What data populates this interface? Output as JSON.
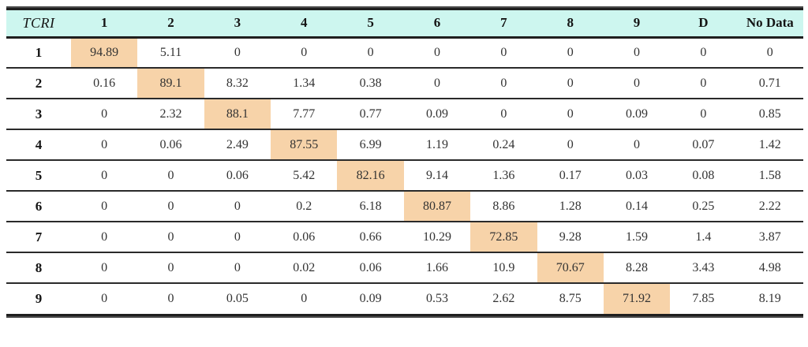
{
  "table": {
    "corner_label": "TCRI",
    "columns": [
      "1",
      "2",
      "3",
      "4",
      "5",
      "6",
      "7",
      "8",
      "9",
      "D",
      "No Data"
    ],
    "rows": [
      {
        "label": "1",
        "highlight_index": 0,
        "values": [
          "94.89",
          "5.11",
          "0",
          "0",
          "0",
          "0",
          "0",
          "0",
          "0",
          "0",
          "0"
        ]
      },
      {
        "label": "2",
        "highlight_index": 1,
        "values": [
          "0.16",
          "89.1",
          "8.32",
          "1.34",
          "0.38",
          "0",
          "0",
          "0",
          "0",
          "0",
          "0.71"
        ]
      },
      {
        "label": "3",
        "highlight_index": 2,
        "values": [
          "0",
          "2.32",
          "88.1",
          "7.77",
          "0.77",
          "0.09",
          "0",
          "0",
          "0.09",
          "0",
          "0.85"
        ]
      },
      {
        "label": "4",
        "highlight_index": 3,
        "values": [
          "0",
          "0.06",
          "2.49",
          "87.55",
          "6.99",
          "1.19",
          "0.24",
          "0",
          "0",
          "0.07",
          "1.42"
        ]
      },
      {
        "label": "5",
        "highlight_index": 4,
        "values": [
          "0",
          "0",
          "0.06",
          "5.42",
          "82.16",
          "9.14",
          "1.36",
          "0.17",
          "0.03",
          "0.08",
          "1.58"
        ]
      },
      {
        "label": "6",
        "highlight_index": 5,
        "values": [
          "0",
          "0",
          "0",
          "0.2",
          "6.18",
          "80.87",
          "8.86",
          "1.28",
          "0.14",
          "0.25",
          "2.22"
        ]
      },
      {
        "label": "7",
        "highlight_index": 6,
        "values": [
          "0",
          "0",
          "0",
          "0.06",
          "0.66",
          "10.29",
          "72.85",
          "9.28",
          "1.59",
          "1.4",
          "3.87"
        ]
      },
      {
        "label": "8",
        "highlight_index": 7,
        "values": [
          "0",
          "0",
          "0",
          "0.02",
          "0.06",
          "1.66",
          "10.9",
          "70.67",
          "8.28",
          "3.43",
          "4.98"
        ]
      },
      {
        "label": "9",
        "highlight_index": 8,
        "values": [
          "0",
          "0",
          "0.05",
          "0",
          "0.09",
          "0.53",
          "2.62",
          "8.75",
          "71.92",
          "7.85",
          "8.19"
        ]
      }
    ]
  },
  "colors": {
    "header_bg": "#cdf6ef",
    "highlight_bg": "#f7d3a9"
  }
}
